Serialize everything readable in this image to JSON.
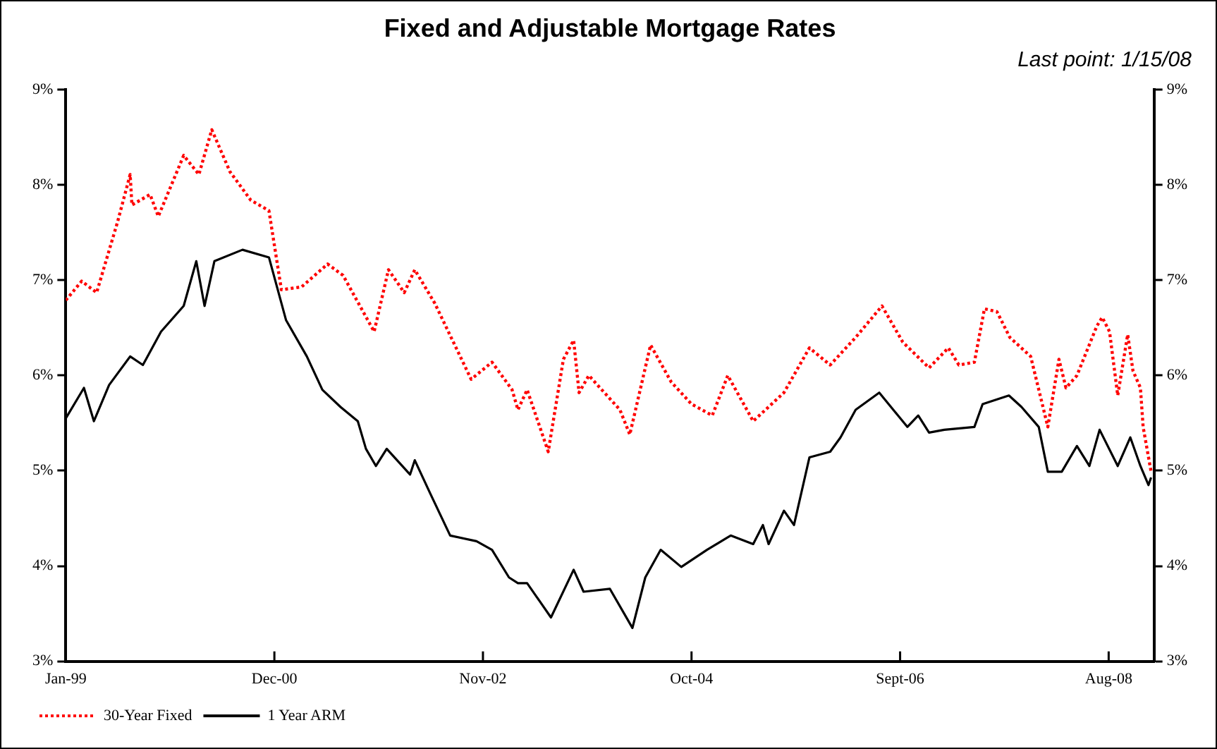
{
  "chart_data": {
    "type": "line",
    "title": "Fixed and Adjustable Mortgage Rates",
    "annotations": [
      "Last point: 1/15/08"
    ],
    "xlim": [
      "1999-01",
      "2009-01"
    ],
    "xticks": [
      {
        "value": "1999-01",
        "label": "Jan-99"
      },
      {
        "value": "2000-12",
        "label": "Dec-00"
      },
      {
        "value": "2002-11",
        "label": "Nov-02"
      },
      {
        "value": "2004-10",
        "label": "Oct-04"
      },
      {
        "value": "2006-09",
        "label": "Sept-06"
      },
      {
        "value": "2008-08",
        "label": "Aug-08"
      }
    ],
    "ylim": [
      3,
      9
    ],
    "yticks": [
      {
        "value": 3,
        "label": "3%"
      },
      {
        "value": 4,
        "label": "4%"
      },
      {
        "value": 5,
        "label": "5%"
      },
      {
        "value": 6,
        "label": "6%"
      },
      {
        "value": 7,
        "label": "7%"
      },
      {
        "value": 8,
        "label": "8%"
      },
      {
        "value": 9,
        "label": "9%"
      }
    ],
    "y2lim": [
      3,
      9
    ],
    "y2ticks": [
      {
        "value": 3,
        "label": "3%"
      },
      {
        "value": 4,
        "label": "4%"
      },
      {
        "value": 5,
        "label": "5%"
      },
      {
        "value": 6,
        "label": "6%"
      },
      {
        "value": 7,
        "label": "7%"
      },
      {
        "value": 8,
        "label": "8%"
      },
      {
        "value": 9,
        "label": "9%"
      }
    ],
    "grid": false,
    "legend": "bottom left",
    "marker": "none",
    "series": [
      {
        "name": "30-Year Fixed",
        "color": "#ff0000",
        "line_style": "dotted",
        "x": [
          "1999-01-01",
          "1999-02-22",
          "1999-04-13",
          "1999-06-22",
          "1999-08-04",
          "1999-08-10",
          "1999-10-10",
          "1999-11-07",
          "2000-02-01",
          "2000-03-22",
          "2000-05-04",
          "2000-07-04",
          "2000-09-13",
          "2000-11-13",
          "2000-12-25",
          "2001-03-01",
          "2001-05-28",
          "2001-07-19",
          "2001-11-01",
          "2001-12-19",
          "2002-02-10",
          "2002-03-16",
          "2002-05-22",
          "2002-09-22",
          "2002-12-01",
          "2003-02-07",
          "2003-02-25",
          "2003-03-28",
          "2003-06-07",
          "2003-07-28",
          "2003-09-01",
          "2003-09-19",
          "2003-10-22",
          "2004-02-04",
          "2004-03-07",
          "2004-05-16",
          "2004-07-25",
          "2004-10-01",
          "2004-12-10",
          "2005-02-01",
          "2005-04-25",
          "2005-08-07",
          "2005-11-01",
          "2006-01-10",
          "2006-04-04",
          "2006-07-01",
          "2006-09-10",
          "2006-12-07",
          "2007-02-10",
          "2007-03-16",
          "2007-05-07",
          "2007-06-10",
          "2007-07-22",
          "2007-09-04",
          "2007-11-13",
          "2008-01-10",
          "2008-02-16",
          "2008-03-10",
          "2008-04-16",
          "2008-06-22",
          "2008-07-10",
          "2008-08-04",
          "2008-09-01",
          "2008-10-04",
          "2008-10-22",
          "2008-11-16",
          "2008-11-25",
          "2008-12-22"
        ],
        "values": [
          6.79,
          6.99,
          6.87,
          7.61,
          8.11,
          7.79,
          7.9,
          7.67,
          8.31,
          8.11,
          8.58,
          8.14,
          7.84,
          7.73,
          6.9,
          6.93,
          7.17,
          7.05,
          6.46,
          7.11,
          6.87,
          7.11,
          6.76,
          5.96,
          6.14,
          5.85,
          5.64,
          5.85,
          5.2,
          6.17,
          6.37,
          5.82,
          6.0,
          5.64,
          5.38,
          6.32,
          5.93,
          5.7,
          5.58,
          6.0,
          5.52,
          5.82,
          6.29,
          6.11,
          6.4,
          6.73,
          6.35,
          6.08,
          6.29,
          6.11,
          6.14,
          6.7,
          6.67,
          6.4,
          6.2,
          5.46,
          6.17,
          5.87,
          6.0,
          6.52,
          6.61,
          6.46,
          5.79,
          6.43,
          6.05,
          5.87,
          5.46,
          4.99
        ]
      },
      {
        "name": "1 Year ARM",
        "color": "#000000",
        "line_style": "solid",
        "x": [
          "1999-01-01",
          "1999-03-01",
          "1999-04-04",
          "1999-05-25",
          "1999-08-04",
          "1999-09-16",
          "1999-11-16",
          "2000-02-01",
          "2000-03-13",
          "2000-04-10",
          "2000-05-13",
          "2000-08-16",
          "2000-11-13",
          "2001-01-10",
          "2001-03-19",
          "2001-05-10",
          "2001-07-10",
          "2001-09-07",
          "2001-10-04",
          "2001-11-07",
          "2001-12-13",
          "2002-02-28",
          "2002-03-16",
          "2002-05-07",
          "2002-07-13",
          "2002-10-10",
          "2002-12-01",
          "2003-01-28",
          "2003-02-25",
          "2003-03-28",
          "2003-06-16",
          "2003-09-01",
          "2003-10-04",
          "2004-01-01",
          "2004-03-16",
          "2004-04-28",
          "2004-06-19",
          "2004-08-28",
          "2004-11-22",
          "2005-02-10",
          "2005-04-25",
          "2005-05-28",
          "2005-06-16",
          "2005-08-07",
          "2005-09-10",
          "2005-11-01",
          "2006-01-10",
          "2006-02-13",
          "2006-04-04",
          "2006-06-22",
          "2006-09-25",
          "2006-11-01",
          "2006-12-07",
          "2007-01-28",
          "2007-05-07",
          "2007-06-04",
          "2007-09-01",
          "2007-10-13",
          "2007-12-10",
          "2008-01-10",
          "2008-02-25",
          "2008-04-16",
          "2008-05-28",
          "2008-07-01",
          "2008-09-01",
          "2008-10-13",
          "2008-11-16",
          "2008-12-13",
          "2008-12-22"
        ],
        "values": [
          5.55,
          5.87,
          5.52,
          5.9,
          6.2,
          6.11,
          6.46,
          6.73,
          7.2,
          6.73,
          7.2,
          7.32,
          7.24,
          6.58,
          6.2,
          5.85,
          5.67,
          5.52,
          5.23,
          5.05,
          5.23,
          4.96,
          5.11,
          4.76,
          4.32,
          4.26,
          4.17,
          3.88,
          3.82,
          3.82,
          3.46,
          3.96,
          3.73,
          3.76,
          3.35,
          3.88,
          4.17,
          3.99,
          4.17,
          4.32,
          4.23,
          4.43,
          4.23,
          4.58,
          4.43,
          5.14,
          5.2,
          5.35,
          5.64,
          5.82,
          5.46,
          5.58,
          5.4,
          5.43,
          5.46,
          5.7,
          5.79,
          5.67,
          5.46,
          4.99,
          4.99,
          5.26,
          5.05,
          5.43,
          5.05,
          5.35,
          5.05,
          4.85,
          4.93
        ]
      }
    ]
  }
}
